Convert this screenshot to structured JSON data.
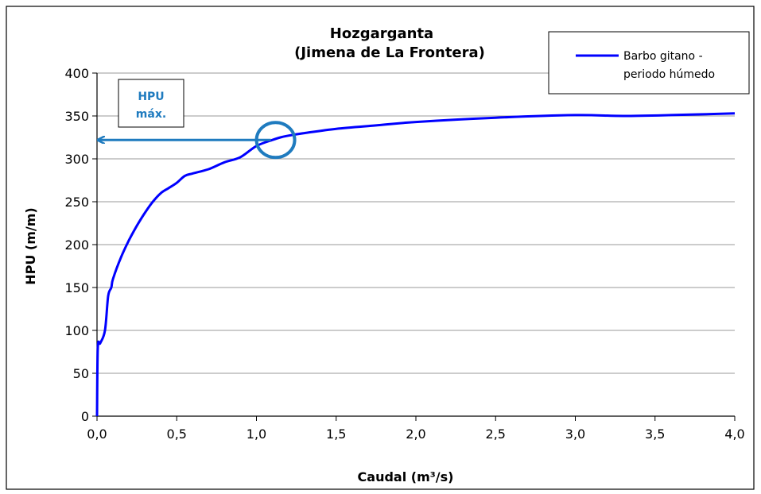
{
  "chart_data": {
    "type": "line",
    "title": [
      "Hozgarganta",
      "(Jimena de La Frontera)"
    ],
    "xlabel": "Caudal (m³/s)",
    "ylabel": "HPU (m/m)",
    "xlim": [
      0,
      4
    ],
    "ylim": [
      0,
      400
    ],
    "x_ticks": [
      0,
      0.5,
      1,
      1.5,
      2,
      2.5,
      3,
      3.5,
      4
    ],
    "x_tick_labels": [
      "0,0",
      "0,5",
      "1,0",
      "1,5",
      "2,0",
      "2,5",
      "3,0",
      "3,5",
      "4,0"
    ],
    "y_ticks": [
      0,
      50,
      100,
      150,
      200,
      250,
      300,
      350,
      400
    ],
    "y_tick_labels": [
      "0",
      "50",
      "100",
      "150",
      "200",
      "250",
      "300",
      "350",
      "400"
    ],
    "grid": "horizontal",
    "legend_position": "top-right",
    "series": [
      {
        "name": "Barbo gitano - periodo húmedo",
        "color": "#0000ff",
        "x": [
          0,
          0.005,
          0.02,
          0.05,
          0.07,
          0.09,
          0.1,
          0.15,
          0.2,
          0.25,
          0.3,
          0.35,
          0.4,
          0.45,
          0.5,
          0.55,
          0.6,
          0.7,
          0.8,
          0.9,
          1.0,
          1.1,
          1.15,
          1.2,
          1.3,
          1.5,
          1.75,
          2.0,
          2.5,
          3.0,
          3.3,
          3.6,
          4.0
        ],
        "y": [
          0,
          80,
          85,
          100,
          140,
          150,
          160,
          185,
          205,
          222,
          237,
          250,
          260,
          266,
          272,
          280,
          283,
          288,
          296,
          302,
          315,
          322,
          325,
          327,
          330,
          335,
          339,
          343,
          348,
          351,
          350,
          351,
          353
        ]
      }
    ],
    "legend_lines": [
      "Barbo gitano -",
      "periodo húmedo"
    ],
    "annotation": {
      "label_lines": [
        "HPU",
        "máx."
      ],
      "color": "#1f7bbf",
      "circle_center": [
        1.12,
        322
      ],
      "arrow_y": 322
    }
  }
}
